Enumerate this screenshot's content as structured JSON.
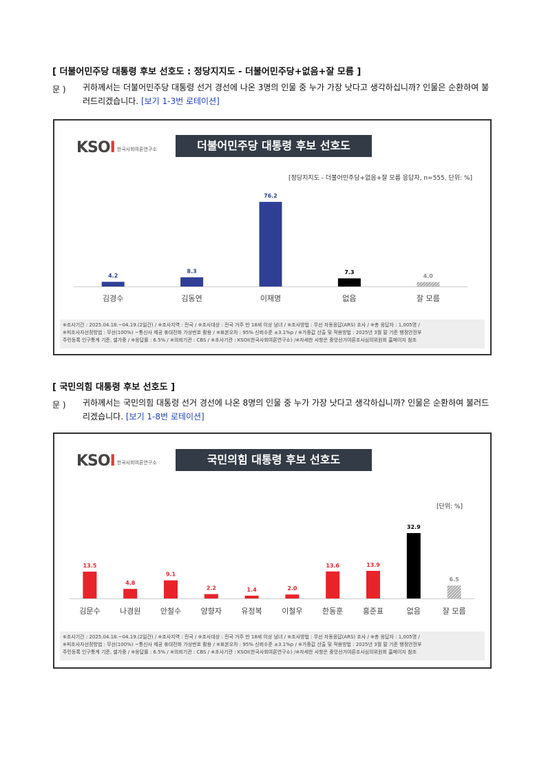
{
  "section1": {
    "title": "[ 더불어민주당 대통령 후보 선호도 : 정당지지도 - 더불어민주당+없음+잘 모름 ]",
    "q_label": "문 )",
    "q_text": "귀하께서는 더불어민주당 대통령 선거 경선에 나온 3명의 인물 중 누가 가장 낫다고 생각하십니까? 인물은 순환하여 불러드리겠습니다.",
    "q_rotation": "[보기 1-3번 로테이션]"
  },
  "section2": {
    "title": "[ 국민의힘 대통령 후보 선호도 ]",
    "q_label": "문 )",
    "q_text": "귀하께서는 국민의힘 대통령 선거 경선에 나온 8명의 인물 중 누가 가장 낫다고 생각하십니까? 인물은 순환하여 불러드리겠습니다.",
    "q_rotation": "[보기 1-8번 로테이션]"
  },
  "logo": {
    "mark": "KSOI",
    "sub": "한국사회여론연구소"
  },
  "footer": {
    "line1": "※조사기간 : 2025.04.18.~04.19.(2일간) / ※조사지역 : 전국 / ※조사대상 : 전국 거주 만 18세 이상 남녀 / ※조사방법 : 무선 자동응답(ARS) 조사 / ※총 응답자 : 1,005명 /",
    "line2": "※피조사자선정방법 : 무선(100%) ~통신사 제공 휴대전화 가상번호 활용 / ※표본오차 : 95% 신뢰수준 ±3.1%p / ※가중값 산출 및 적용방법 : 2025년 3월 말 기준 행정안전부",
    "line3": "주민등록 인구통계 기준, 셀가중 / ※응답률 : 6.5% / ※의뢰기관 : CBS / ※조사기관 : KSOI(한국사회여론연구소) /※자세한 사항은 중앙선거여론조사심의위원회 홈페이지 참조"
  },
  "colors": {
    "blue": "#2f3f95",
    "red": "#e8232a",
    "black": "#000000",
    "hatch": "#888888"
  },
  "chart_data": [
    {
      "type": "bar",
      "title": "더불어민주당 대통령 후보 선호도",
      "subtitle": "[정당지지도 - 더불어민주당+없음+잘 모름 응답자, n=555, 단위: %]",
      "categories": [
        "김경수",
        "김동연",
        "이재명",
        "없음",
        "잘 모름"
      ],
      "values": [
        4.2,
        8.3,
        76.2,
        7.3,
        4.0
      ],
      "bar_colors": [
        "#2f3f95",
        "#2f3f95",
        "#2f3f95",
        "#000000",
        "hatch"
      ],
      "label_colors": [
        "#2f3f95",
        "#2f3f95",
        "#2f3f95",
        "#000000",
        "#888888"
      ],
      "ylim": [
        0,
        80
      ]
    },
    {
      "type": "bar",
      "title": "국민의힘 대통령 후보 선호도",
      "subtitle": "[단위: %]",
      "categories": [
        "김문수",
        "나경원",
        "안철수",
        "양향자",
        "유정복",
        "이철우",
        "한동훈",
        "홍준표",
        "없음",
        "잘 모름"
      ],
      "values": [
        13.5,
        4.8,
        9.1,
        2.2,
        1.4,
        2.0,
        13.6,
        13.9,
        32.9,
        6.5
      ],
      "bar_colors": [
        "#e8232a",
        "#e8232a",
        "#e8232a",
        "#e8232a",
        "#e8232a",
        "#e8232a",
        "#e8232a",
        "#e8232a",
        "#000000",
        "hatch"
      ],
      "label_colors": [
        "#e8232a",
        "#e8232a",
        "#e8232a",
        "#e8232a",
        "#e8232a",
        "#e8232a",
        "#e8232a",
        "#e8232a",
        "#000000",
        "#888888"
      ],
      "ylim": [
        0,
        35
      ]
    }
  ]
}
